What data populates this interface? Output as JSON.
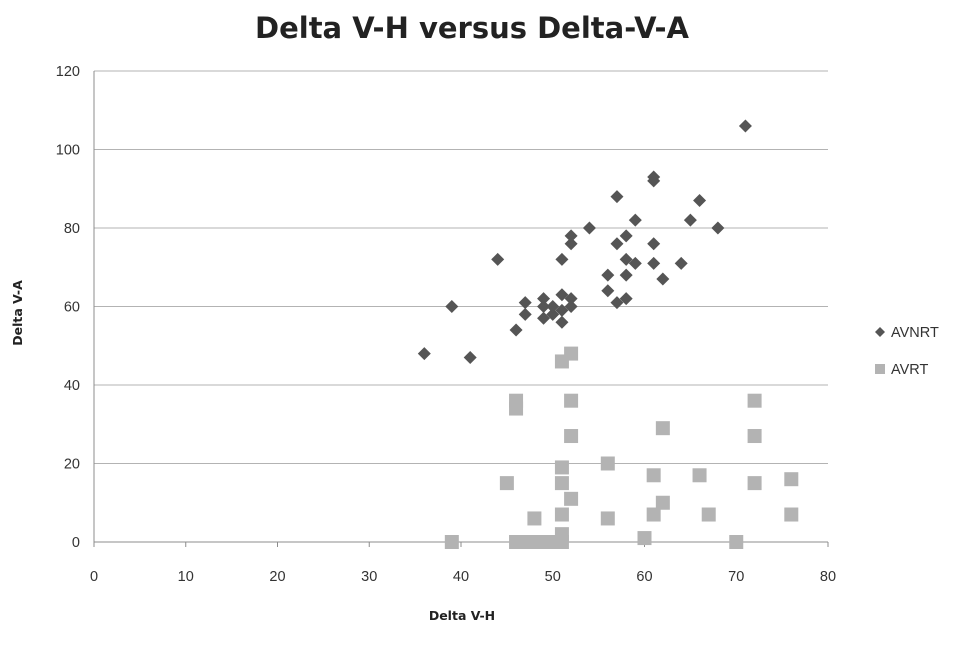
{
  "chart_data": {
    "type": "scatter",
    "title": "Delta V-H versus Delta-V-A",
    "xlabel": "Delta V-H",
    "ylabel": "Delta V-A",
    "xlim": [
      0,
      80
    ],
    "ylim": [
      0,
      120
    ],
    "xticks": [
      0,
      10,
      20,
      30,
      40,
      50,
      60,
      70,
      80
    ],
    "yticks": [
      0,
      20,
      40,
      60,
      80,
      100,
      120
    ],
    "grid": true,
    "legend_position": "right",
    "series": [
      {
        "name": "AVNRT",
        "marker": "diamond",
        "color": "#555555",
        "points": [
          [
            36,
            48
          ],
          [
            39,
            60
          ],
          [
            41,
            47
          ],
          [
            44,
            72
          ],
          [
            46,
            54
          ],
          [
            47,
            58
          ],
          [
            47,
            61
          ],
          [
            49,
            57
          ],
          [
            49,
            60
          ],
          [
            49,
            62
          ],
          [
            50,
            58
          ],
          [
            50,
            60
          ],
          [
            51,
            56
          ],
          [
            51,
            59
          ],
          [
            51,
            63
          ],
          [
            51,
            72
          ],
          [
            52,
            60
          ],
          [
            52,
            62
          ],
          [
            52,
            76
          ],
          [
            52,
            78
          ],
          [
            54,
            80
          ],
          [
            56,
            64
          ],
          [
            56,
            68
          ],
          [
            57,
            61
          ],
          [
            57,
            76
          ],
          [
            57,
            88
          ],
          [
            58,
            62
          ],
          [
            58,
            68
          ],
          [
            58,
            72
          ],
          [
            58,
            78
          ],
          [
            59,
            71
          ],
          [
            59,
            82
          ],
          [
            61,
            71
          ],
          [
            61,
            76
          ],
          [
            61,
            92
          ],
          [
            61,
            93
          ],
          [
            62,
            67
          ],
          [
            64,
            71
          ],
          [
            65,
            82
          ],
          [
            66,
            87
          ],
          [
            68,
            80
          ],
          [
            71,
            106
          ]
        ]
      },
      {
        "name": "AVRT",
        "marker": "square",
        "color": "#b3b3b3",
        "points": [
          [
            39,
            0
          ],
          [
            45,
            15
          ],
          [
            46,
            0
          ],
          [
            46,
            34
          ],
          [
            46,
            36
          ],
          [
            47,
            0
          ],
          [
            48,
            0
          ],
          [
            48,
            6
          ],
          [
            49,
            0
          ],
          [
            50,
            0
          ],
          [
            51,
            0
          ],
          [
            51,
            2
          ],
          [
            51,
            7
          ],
          [
            51,
            15
          ],
          [
            51,
            19
          ],
          [
            51,
            46
          ],
          [
            52,
            11
          ],
          [
            52,
            27
          ],
          [
            52,
            36
          ],
          [
            52,
            48
          ],
          [
            56,
            6
          ],
          [
            56,
            20
          ],
          [
            60,
            1
          ],
          [
            61,
            7
          ],
          [
            61,
            17
          ],
          [
            62,
            10
          ],
          [
            62,
            29
          ],
          [
            66,
            17
          ],
          [
            67,
            7
          ],
          [
            70,
            0
          ],
          [
            72,
            15
          ],
          [
            72,
            27
          ],
          [
            72,
            36
          ],
          [
            76,
            7
          ],
          [
            76,
            16
          ]
        ]
      }
    ]
  }
}
